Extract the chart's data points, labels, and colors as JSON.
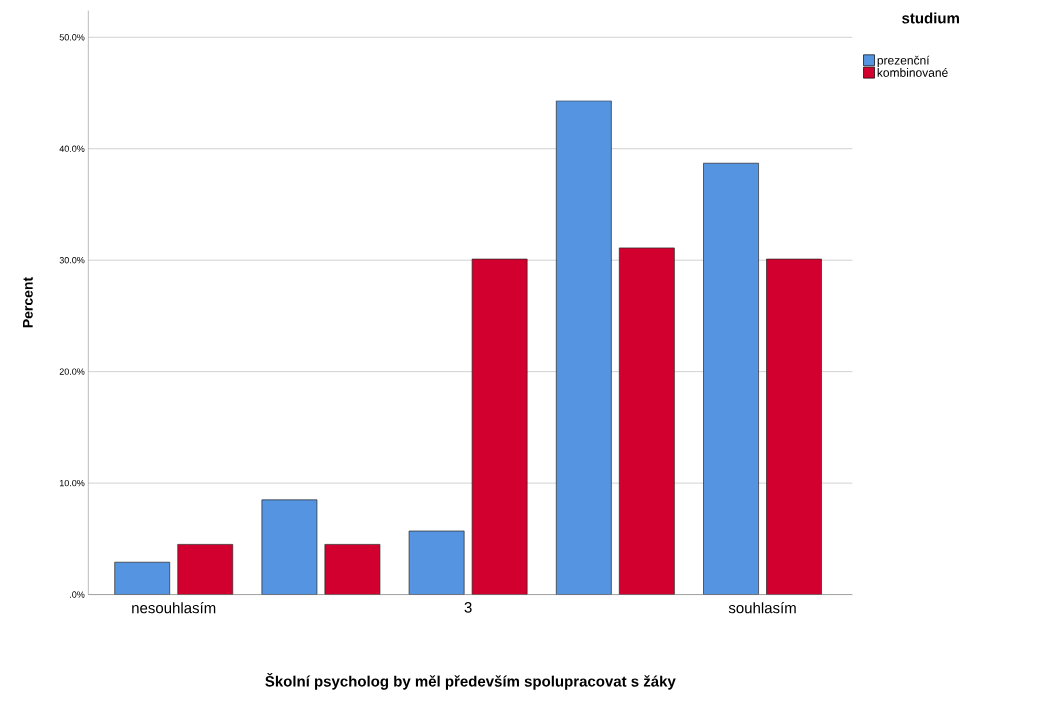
{
  "chart_data": {
    "type": "bar",
    "xlabel": "Školní psycholog by měl především spolupracovat s žáky",
    "ylabel": "Percent",
    "legend_title": "studium",
    "categories": [
      "nesouhlasím",
      null,
      "3",
      null,
      "souhlasím"
    ],
    "series": [
      {
        "name": "prezenční",
        "color": "#5594e0",
        "values": [
          2.9,
          8.5,
          5.7,
          44.3,
          38.7
        ]
      },
      {
        "name": "kombinované",
        "color": "#d2002e",
        "values": [
          4.5,
          4.5,
          30.1,
          31.1,
          30.1
        ]
      }
    ],
    "ylim": [
      0,
      52.4
    ],
    "yticks": [
      {
        "value": 0,
        "label": ".0%"
      },
      {
        "value": 10,
        "label": "10.0%"
      },
      {
        "value": 20,
        "label": "20.0%"
      },
      {
        "value": 30,
        "label": "30.0%"
      },
      {
        "value": 40,
        "label": "40.0%"
      },
      {
        "value": 50,
        "label": "50.0%"
      }
    ],
    "grid": "y",
    "legend": "top right"
  }
}
